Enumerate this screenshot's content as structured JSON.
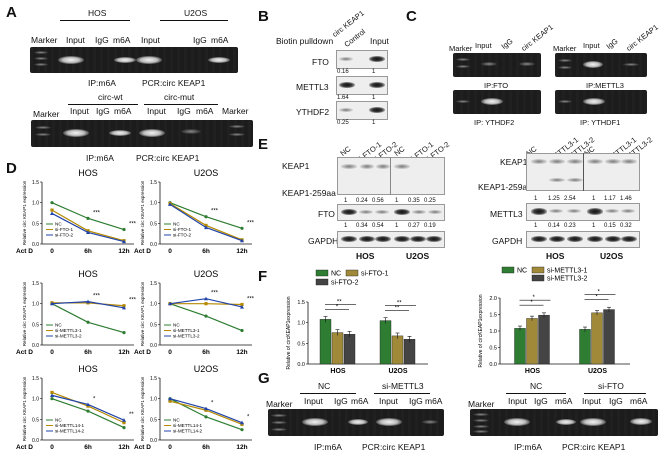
{
  "panel_labels": {
    "A": "A",
    "B": "B",
    "C": "C",
    "D": "D",
    "E": "E",
    "F": "F",
    "G": "G"
  },
  "A": {
    "group1": "HOS",
    "group2": "U2OS",
    "marker": "Marker",
    "lanes": [
      "Input",
      "IgG",
      "m6A",
      "Input",
      "IgG",
      "m6A"
    ],
    "caption_ip": "IP:m6A",
    "caption_pcr": "PCR:circ KEAP1",
    "group3": "circ-wt",
    "group4": "circ-mut",
    "lanes2": [
      "Input",
      "IgG",
      "m6A",
      "Input",
      "IgG",
      "m6A"
    ],
    "caption2_ip": "IP:m6A",
    "caption2_pcr": "PCR:circ KEAP1"
  },
  "B": {
    "title": "Biotin pulldown",
    "lanes": [
      "circ KEAP1",
      "Control",
      "Input"
    ],
    "rows": [
      {
        "label": "FTO",
        "quant": [
          "0.16",
          "1"
        ]
      },
      {
        "label": "METTL3",
        "quant": [
          "1.64",
          "1"
        ]
      },
      {
        "label": "YTHDF2",
        "quant": [
          "0.25",
          "1"
        ]
      }
    ]
  },
  "C": {
    "left_lanes": [
      "Marker",
      "Input",
      "IgG",
      "circ KEAP1"
    ],
    "right_lanes": [
      "Marker",
      "Input",
      "IgG",
      "circ KEAP1"
    ],
    "captions": [
      "IP:FTO",
      "IP:METTL3",
      "IP: YTHDF2",
      "IP: YTHDF1"
    ]
  },
  "D": {
    "ylabel": "Relative circ KEAP1 expression",
    "xaxis_prefix": "Act D",
    "chart_data": [
      {
        "type": "line",
        "title": "HOS",
        "x": [
          "0",
          "6h",
          "12h"
        ],
        "ylim": [
          0,
          1.5
        ],
        "yticks": [
          "0.0",
          "0.5",
          "1.0",
          "1.5"
        ],
        "series": [
          {
            "name": "NC",
            "values": [
              1.0,
              0.62,
              0.35
            ]
          },
          {
            "name": "si-FTO-1",
            "values": [
              0.82,
              0.32,
              0.08
            ]
          },
          {
            "name": "si-FTO-2",
            "values": [
              0.74,
              0.28,
              0.06
            ]
          }
        ],
        "sig": [
          "***",
          "***"
        ]
      },
      {
        "type": "line",
        "title": "U2OS",
        "x": [
          "0",
          "6h",
          "12h"
        ],
        "ylim": [
          0,
          1.5
        ],
        "yticks": [
          "0.0",
          "0.5",
          "1.0",
          "1.5"
        ],
        "series": [
          {
            "name": "NC",
            "values": [
              1.0,
              0.66,
              0.38
            ]
          },
          {
            "name": "si-FTO-1",
            "values": [
              0.98,
              0.45,
              0.1
            ]
          },
          {
            "name": "si-FTO-2",
            "values": [
              0.96,
              0.4,
              0.08
            ]
          }
        ],
        "sig": [
          "***",
          "***"
        ]
      },
      {
        "type": "line",
        "title": "HOS",
        "x": [
          "0",
          "6h",
          "12h"
        ],
        "ylim": [
          0,
          1.5
        ],
        "yticks": [
          "0.0",
          "0.5",
          "1.0",
          "1.5"
        ],
        "series": [
          {
            "name": "NC",
            "values": [
              1.0,
              0.55,
              0.3
            ]
          },
          {
            "name": "si-METTL3-1",
            "values": [
              1.02,
              1.02,
              0.95
            ]
          },
          {
            "name": "si-METTL3-2",
            "values": [
              1.0,
              1.05,
              0.9
            ]
          }
        ],
        "sig": [
          "***",
          "***"
        ]
      },
      {
        "type": "line",
        "title": "U2OS",
        "x": [
          "0",
          "6h",
          "12h"
        ],
        "ylim": [
          0,
          1.5
        ],
        "yticks": [
          "0.0",
          "0.5",
          "1.0",
          "1.5"
        ],
        "series": [
          {
            "name": "NC",
            "values": [
              1.0,
              0.7,
              0.35
            ]
          },
          {
            "name": "si-METTL3-1",
            "values": [
              1.0,
              1.0,
              0.98
            ]
          },
          {
            "name": "si-METTL3-2",
            "values": [
              1.0,
              1.12,
              0.92
            ]
          }
        ],
        "sig": [
          "***",
          "***"
        ]
      },
      {
        "type": "line",
        "title": "HOS",
        "x": [
          "0",
          "6h",
          "12h"
        ],
        "ylim": [
          0,
          1.5
        ],
        "yticks": [
          "0.0",
          "0.5",
          "1.0",
          "1.5"
        ],
        "series": [
          {
            "name": "NC",
            "values": [
              1.0,
              0.7,
              0.3
            ]
          },
          {
            "name": "si-METTL14-1",
            "values": [
              1.15,
              0.82,
              0.42
            ]
          },
          {
            "name": "si-METTL14-2",
            "values": [
              1.08,
              0.86,
              0.48
            ]
          }
        ],
        "sig": [
          "*",
          "**"
        ]
      },
      {
        "type": "line",
        "title": "U2OS",
        "x": [
          "0",
          "6h",
          "12h"
        ],
        "ylim": [
          0,
          1.5
        ],
        "yticks": [
          "0.0",
          "0.5",
          "1.0",
          "1.5"
        ],
        "series": [
          {
            "name": "NC",
            "values": [
              1.0,
              0.56,
              0.25
            ]
          },
          {
            "name": "si-METTL14-1",
            "values": [
              0.94,
              0.72,
              0.38
            ]
          },
          {
            "name": "si-METTL14-2",
            "values": [
              1.0,
              0.76,
              0.42
            ]
          }
        ],
        "sig": [
          "*",
          "*"
        ]
      }
    ]
  },
  "E": {
    "left_lanes": [
      "NC",
      "si-FTO-1",
      "si-FTO-2",
      "NC",
      "si-FTO-1",
      "si-FTO-2"
    ],
    "right_lanes": [
      "NC",
      "si-METTL3-1",
      "si-METTL3-2",
      "NC",
      "si-METTL3-1",
      "si-METTL3-2"
    ],
    "left_rows": [
      "KEAP1",
      "KEAP1-259aa",
      "FTO",
      "GAPDH"
    ],
    "right_rows": [
      "KEAP1",
      "KEAP1-259aa",
      "METTL3",
      "GAPDH"
    ],
    "left_q1": [
      "1",
      "0.24",
      "0.56",
      "1",
      "0.35",
      "0.25"
    ],
    "left_q2": [
      "1",
      "0.34",
      "0.54",
      "1",
      "0.27",
      "0.19"
    ],
    "right_q1": [
      "1",
      "1.25",
      "2.54",
      "1",
      "1.17",
      "1.46"
    ],
    "right_q2": [
      "1",
      "0.14",
      "0.23",
      "1",
      "0.15",
      "0.32"
    ],
    "bottom": [
      "HOS",
      "U2OS",
      "HOS",
      "U2OS"
    ]
  },
  "F": {
    "ylabel": "Relative of circKEAP1expression",
    "colors": {
      "nc": "#2e7d32",
      "s1": "#a08a3a",
      "s2": "#444444"
    },
    "chart_data": [
      {
        "type": "bar",
        "categories": [
          "HOS",
          "U2OS"
        ],
        "ylim": [
          0,
          1.5
        ],
        "yticks": [
          "0.0",
          "0.5",
          "1.0",
          "1.5"
        ],
        "series": [
          {
            "name": "NC",
            "values": [
              1.08,
              1.05
            ]
          },
          {
            "name": "si-FTO-1",
            "values": [
              0.76,
              0.68
            ]
          },
          {
            "name": "si-FTO-2",
            "values": [
              0.72,
              0.6
            ]
          }
        ],
        "sig": [
          "*",
          "**",
          "**",
          "**"
        ]
      },
      {
        "type": "bar",
        "categories": [
          "HOS",
          "U2OS"
        ],
        "ylim": [
          0,
          2.0
        ],
        "yticks": [
          "0.0",
          "0.5",
          "1.0",
          "1.5",
          "2.0"
        ],
        "series": [
          {
            "name": "NC",
            "values": [
              1.08,
              1.05
            ]
          },
          {
            "name": "si-METTL3-1",
            "values": [
              1.38,
              1.55
            ]
          },
          {
            "name": "si-METTL3-2",
            "values": [
              1.48,
              1.65
            ]
          }
        ],
        "sig": [
          "*",
          "*",
          "*",
          "*"
        ]
      }
    ]
  },
  "G": {
    "left": {
      "marker": "Marker",
      "group1": "NC",
      "group2": "si-METTL3",
      "lanes": [
        "Input",
        "IgG",
        "m6A",
        "Input",
        "IgG",
        "m6A"
      ],
      "ip": "IP:m6A",
      "pcr": "PCR:circ KEAP1"
    },
    "right": {
      "marker": "Marker",
      "group1": "NC",
      "group2": "si-FTO",
      "lanes": [
        "Input",
        "IgG",
        "m6A",
        "Input",
        "IgG",
        "m6A"
      ],
      "ip": "IP:m6A",
      "pcr": "PCR:circ KEAP1"
    }
  }
}
